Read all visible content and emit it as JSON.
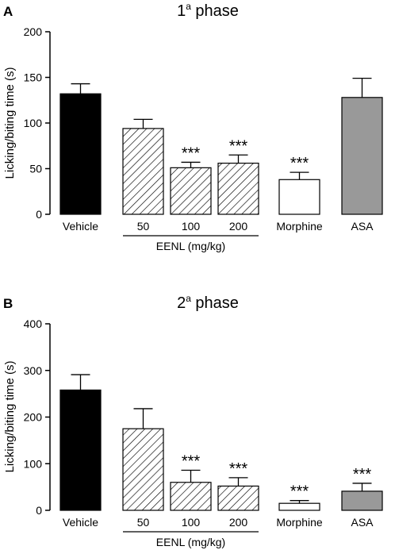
{
  "chart_data": [
    {
      "type": "bar",
      "panel_label": "A",
      "title_prefix": "1",
      "title_sup": "a",
      "title_suffix": " phase",
      "ylabel": "Licking/biting time (s)",
      "ylim": [
        0,
        200
      ],
      "yticks": [
        "0",
        "50",
        "100",
        "150",
        "200"
      ],
      "categories": [
        "Vehicle",
        "50",
        "100",
        "200",
        "Morphine",
        "ASA"
      ],
      "values": [
        132,
        94,
        51,
        56,
        38,
        128
      ],
      "errors": [
        11,
        10,
        6,
        9,
        8,
        21
      ],
      "significance": [
        "",
        "",
        "***",
        "***",
        "***",
        ""
      ],
      "styles": [
        "#000000",
        "hatch",
        "hatch",
        "hatch",
        "#ffffff",
        "#999999"
      ],
      "group": {
        "label": "EENL (mg/kg)",
        "members": [
          1,
          2,
          3
        ]
      }
    },
    {
      "type": "bar",
      "panel_label": "B",
      "title_prefix": "2",
      "title_sup": "a",
      "title_suffix": " phase",
      "ylabel": "Licking/biting time (s)",
      "ylim": [
        0,
        400
      ],
      "yticks": [
        "0",
        "100",
        "200",
        "300",
        "400"
      ],
      "categories": [
        "Vehicle",
        "50",
        "100",
        "200",
        "Morphine",
        "ASA"
      ],
      "values": [
        258,
        175,
        60,
        52,
        15,
        41
      ],
      "errors": [
        33,
        43,
        26,
        18,
        6,
        17
      ],
      "significance": [
        "",
        "",
        "***",
        "***",
        "***",
        "***"
      ],
      "styles": [
        "#000000",
        "hatch",
        "hatch",
        "hatch",
        "#ffffff",
        "#999999"
      ],
      "group": {
        "label": "EENL (mg/kg)",
        "members": [
          1,
          2,
          3
        ]
      }
    }
  ]
}
